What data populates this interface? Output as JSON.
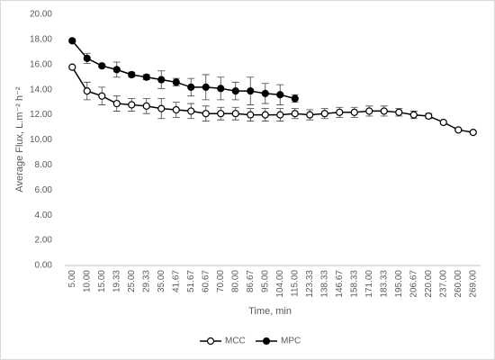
{
  "chart_data": {
    "type": "line",
    "xlabel": "Time, min",
    "ylabel": "Average Flux, L.m⁻² h⁻²",
    "categories": [
      "5.00",
      "10.00",
      "15.00",
      "19.33",
      "25.00",
      "29.33",
      "35.00",
      "41.67",
      "51.67",
      "60.67",
      "70.00",
      "80.00",
      "86.67",
      "95.00",
      "104.00",
      "115.00",
      "123.33",
      "138.33",
      "146.67",
      "158.33",
      "171.00",
      "183.33",
      "195.00",
      "206.67",
      "220.00",
      "237.00",
      "260.00",
      "269.00"
    ],
    "series": [
      {
        "name": "MCC",
        "color": "#000000",
        "marker": "open",
        "values": [
          15.8,
          13.9,
          13.5,
          12.9,
          12.8,
          12.7,
          12.5,
          12.4,
          12.3,
          12.1,
          12.1,
          12.1,
          12.0,
          12.0,
          12.0,
          12.1,
          12.0,
          12.1,
          12.2,
          12.2,
          12.3,
          12.3,
          12.2,
          12.0,
          11.9,
          11.4,
          10.8,
          10.6
        ],
        "errors": [
          0.1,
          0.7,
          0.7,
          0.6,
          0.5,
          0.6,
          0.8,
          0.6,
          0.6,
          0.6,
          0.5,
          0.5,
          0.5,
          0.5,
          0.5,
          0.4,
          0.4,
          0.4,
          0.4,
          0.4,
          0.4,
          0.4,
          0.3,
          0.3,
          0.2,
          0.1,
          0.1,
          0.1
        ]
      },
      {
        "name": "MPC",
        "color": "#000000",
        "marker": "filled",
        "values": [
          17.9,
          16.5,
          15.9,
          15.6,
          15.2,
          15.0,
          14.8,
          14.6,
          14.2,
          14.2,
          14.1,
          13.9,
          13.9,
          13.7,
          13.6,
          13.3,
          null,
          null,
          null,
          null,
          null,
          null,
          null,
          null,
          null,
          null,
          null,
          null
        ],
        "errors": [
          0.1,
          0.4,
          0.1,
          0.6,
          0.2,
          0.2,
          0.7,
          0.3,
          0.7,
          1.0,
          0.9,
          0.7,
          1.1,
          0.8,
          0.8,
          0.3,
          null,
          null,
          null,
          null,
          null,
          null,
          null,
          null,
          null,
          null,
          null,
          null
        ]
      }
    ],
    "ylim": [
      0,
      20
    ],
    "yticks": [
      {
        "value": 0,
        "label": "0.00"
      },
      {
        "value": 2,
        "label": "2.00"
      },
      {
        "value": 4,
        "label": "4.00"
      },
      {
        "value": 6,
        "label": "6.00"
      },
      {
        "value": 8,
        "label": "8.00"
      },
      {
        "value": 10,
        "label": "10.00"
      },
      {
        "value": 12,
        "label": "12.00"
      },
      {
        "value": 14,
        "label": "14.00"
      },
      {
        "value": 16,
        "label": "16.00"
      },
      {
        "value": 18,
        "label": "18.00"
      },
      {
        "value": 20,
        "label": "20.00"
      }
    ],
    "grid": false,
    "legend": "bottom"
  }
}
